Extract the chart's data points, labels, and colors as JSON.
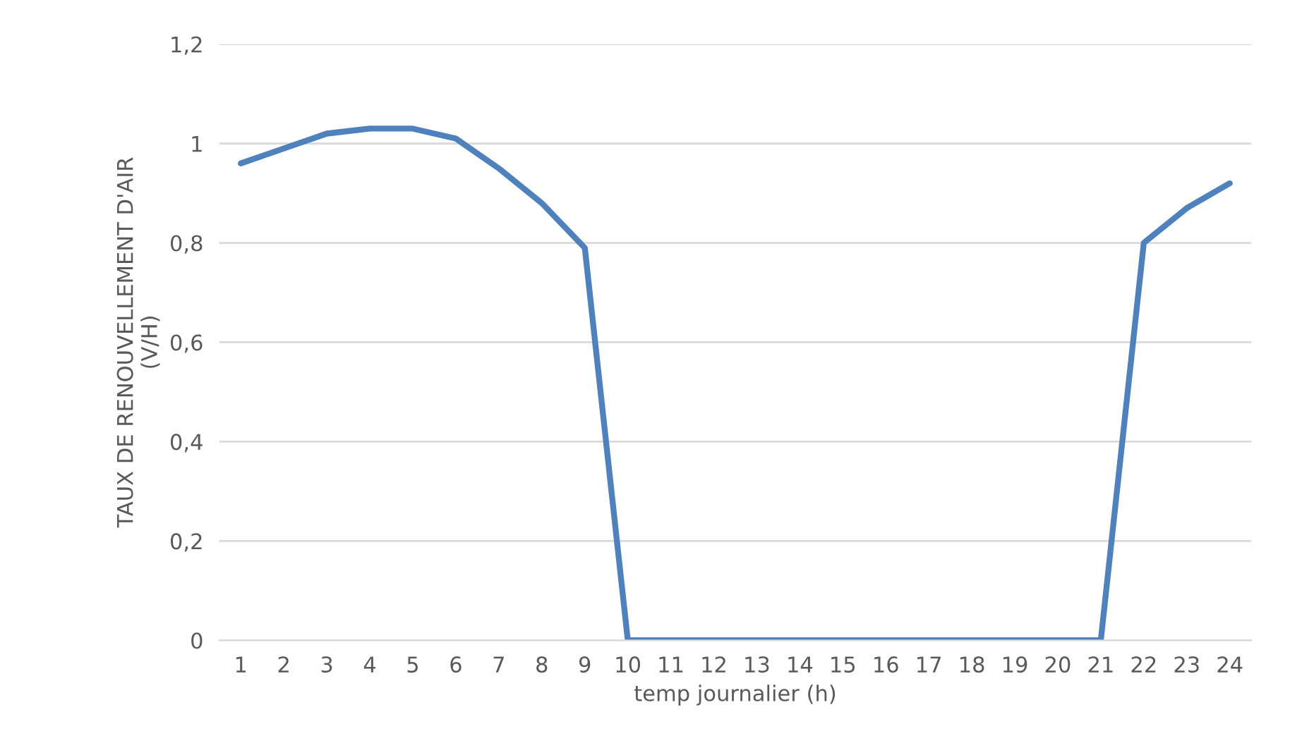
{
  "chart_data": {
    "type": "line",
    "xlabel": "temp journalier (h)",
    "ylabel": "TAUX DE RENOUVELLEMENT D'AIR\n(V/H)",
    "categories": [
      "1",
      "2",
      "3",
      "4",
      "5",
      "6",
      "7",
      "8",
      "9",
      "10",
      "11",
      "12",
      "13",
      "14",
      "15",
      "16",
      "17",
      "18",
      "19",
      "20",
      "21",
      "22",
      "23",
      "24"
    ],
    "series": [
      {
        "color": "#4f81bd",
        "values": [
          0.96,
          0.99,
          1.02,
          1.03,
          1.03,
          1.01,
          0.95,
          0.88,
          0.79,
          0,
          0,
          0,
          0,
          0,
          0,
          0,
          0,
          0,
          0,
          0,
          0,
          0.8,
          0.87,
          0.92
        ]
      }
    ],
    "ylim": [
      0,
      1.2
    ],
    "yticks": [
      {
        "value": 0,
        "label": "0"
      },
      {
        "value": 0.2,
        "label": "0,2"
      },
      {
        "value": 0.4,
        "label": "0,4"
      },
      {
        "value": 0.6,
        "label": "0,6"
      },
      {
        "value": 0.8,
        "label": "0,8"
      },
      {
        "value": 1,
        "label": "1"
      },
      {
        "value": 1.2,
        "label": "1,2"
      }
    ],
    "grid": "y",
    "line_style": "solid",
    "marker": "none"
  }
}
